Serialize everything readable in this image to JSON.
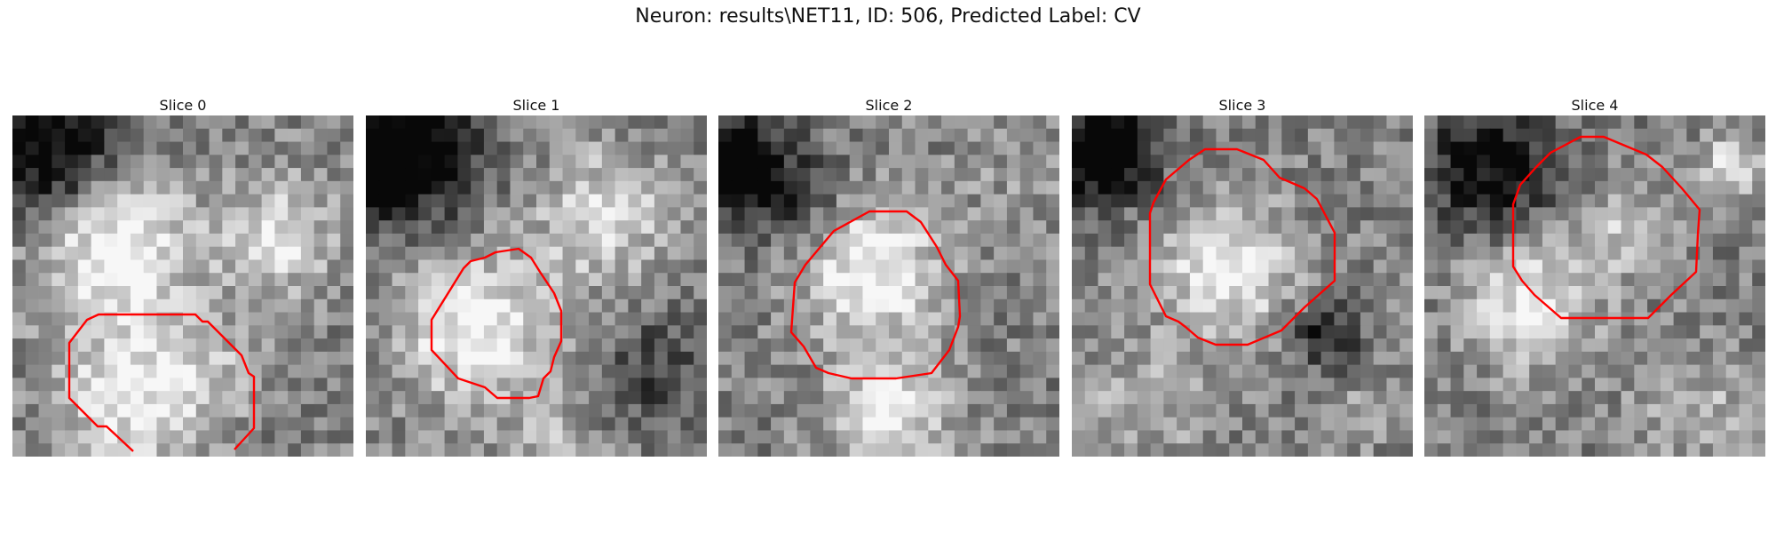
{
  "figure": {
    "title": "Neuron: results\\NET11, ID: 506, Predicted Label: CV"
  },
  "slices": [
    {
      "title": "Slice 0"
    },
    {
      "title": "Slice 1"
    },
    {
      "title": "Slice 2"
    },
    {
      "title": "Slice 3"
    },
    {
      "title": "Slice 4"
    }
  ],
  "colors": {
    "contour": "#ff0000"
  }
}
